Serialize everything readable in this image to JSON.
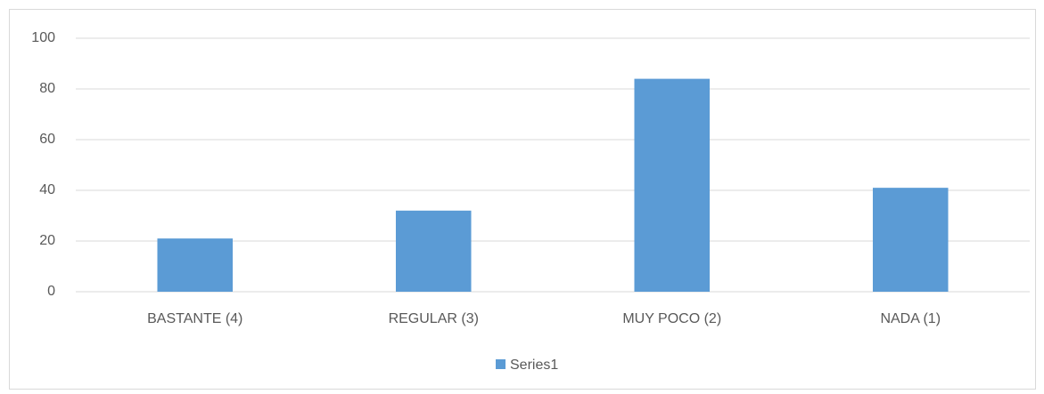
{
  "chart_data": {
    "type": "bar",
    "categories": [
      "BASTANTE (4)",
      "REGULAR (3)",
      "MUY POCO (2)",
      "NADA (1)"
    ],
    "series": [
      {
        "name": "Series1",
        "color": "#5b9bd5",
        "values": [
          21,
          32,
          84,
          41
        ]
      }
    ],
    "ylim": [
      0,
      100
    ],
    "yticks": [
      0,
      20,
      40,
      60,
      80,
      100
    ],
    "grid": true,
    "legend": "bottom"
  }
}
